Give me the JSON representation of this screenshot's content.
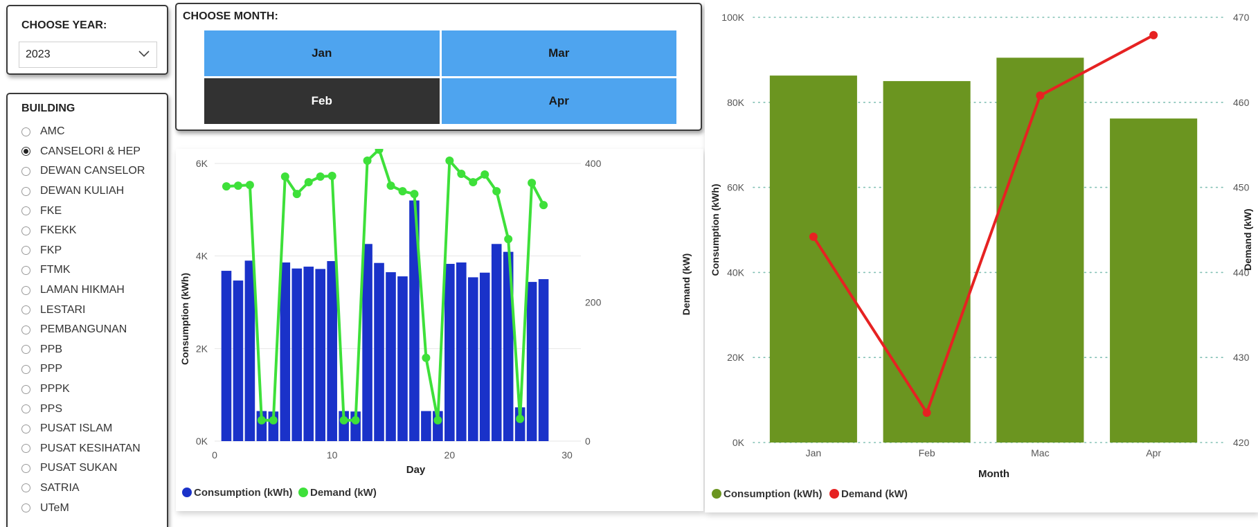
{
  "year_slicer": {
    "title": "CHOOSE YEAR:",
    "selected": "2023"
  },
  "building_slicer": {
    "title": "BUILDING",
    "selected": "CANSELORI & HEP",
    "items": [
      "AMC",
      "CANSELORI & HEP",
      "DEWAN CANSELOR",
      "DEWAN KULIAH",
      "FKE",
      "FKEKK",
      "FKP",
      "FTMK",
      "LAMAN HIKMAH",
      "LESTARI",
      "PEMBANGUNAN",
      "PPB",
      "PPP",
      "PPPK",
      "PPS",
      "PUSAT ISLAM",
      "PUSAT KESIHATAN",
      "PUSAT SUKAN",
      "SATRIA",
      "UTeM"
    ]
  },
  "month_slicer": {
    "title": "CHOOSE MONTH:",
    "buttons": [
      "Jan",
      "Mar",
      "Feb",
      "Apr"
    ],
    "selected": "Feb"
  },
  "colors": {
    "daily_bar": "#1a32c9",
    "daily_line": "#3ee03a",
    "monthly_bar": "#6b9520",
    "monthly_line": "#e62222",
    "month_button": "#4ea4ef",
    "month_button_selected": "#323232"
  },
  "chart_data": [
    {
      "type": "bar",
      "title": "",
      "xlabel": "Day",
      "ylabel": "Consumption (kWh)",
      "y2label": "Demand (kW)",
      "xlim": [
        0,
        30
      ],
      "ylim": [
        0,
        6000
      ],
      "y2lim": [
        0,
        400
      ],
      "x_ticks": [
        "0",
        "10",
        "20",
        "30"
      ],
      "y_ticks": [
        "0K",
        "2K",
        "4K",
        "6K"
      ],
      "y2_ticks": [
        "0",
        "200",
        "400"
      ],
      "grid": true,
      "legend_position": "bottom-left",
      "x": [
        1,
        2,
        3,
        4,
        5,
        6,
        7,
        8,
        9,
        10,
        11,
        12,
        13,
        14,
        15,
        16,
        17,
        18,
        19,
        20,
        21,
        22,
        23,
        24,
        25,
        26,
        27,
        28
      ],
      "series": [
        {
          "name": "Consumption (kWh)",
          "kind": "bar",
          "values": [
            3680,
            3470,
            3900,
            650,
            640,
            3860,
            3730,
            3770,
            3720,
            3890,
            650,
            640,
            4260,
            3850,
            3650,
            3560,
            5200,
            650,
            650,
            3830,
            3860,
            3540,
            3640,
            4260,
            4090,
            730,
            3440,
            3500
          ]
        },
        {
          "name": "Demand (kW)",
          "kind": "line",
          "axis": "right",
          "values": [
            367,
            368,
            369,
            30,
            30,
            381,
            356,
            373,
            381,
            382,
            30,
            30,
            404,
            420,
            368,
            360,
            356,
            120,
            30,
            404,
            385,
            373,
            384,
            360,
            291,
            32,
            372,
            340
          ]
        }
      ]
    },
    {
      "type": "bar",
      "title": "",
      "xlabel": "Month",
      "ylabel": "Consumption (kWh)",
      "y2label": "Demand (kW)",
      "categories": [
        "Jan",
        "Feb",
        "Mac",
        "Apr"
      ],
      "ylim": [
        0,
        100000
      ],
      "y2lim": [
        420,
        470
      ],
      "y_ticks": [
        "0K",
        "20K",
        "40K",
        "60K",
        "80K",
        "100K"
      ],
      "y2_ticks": [
        "420",
        "430",
        "440",
        "450",
        "460",
        "470"
      ],
      "grid": true,
      "legend_position": "bottom-left",
      "series": [
        {
          "name": "Consumption (kWh)",
          "kind": "bar",
          "values": [
            86300,
            85000,
            90500,
            76200
          ]
        },
        {
          "name": "Demand (kW)",
          "kind": "line",
          "axis": "right",
          "values": [
            444.2,
            423.5,
            460.8,
            467.9
          ]
        }
      ]
    }
  ]
}
